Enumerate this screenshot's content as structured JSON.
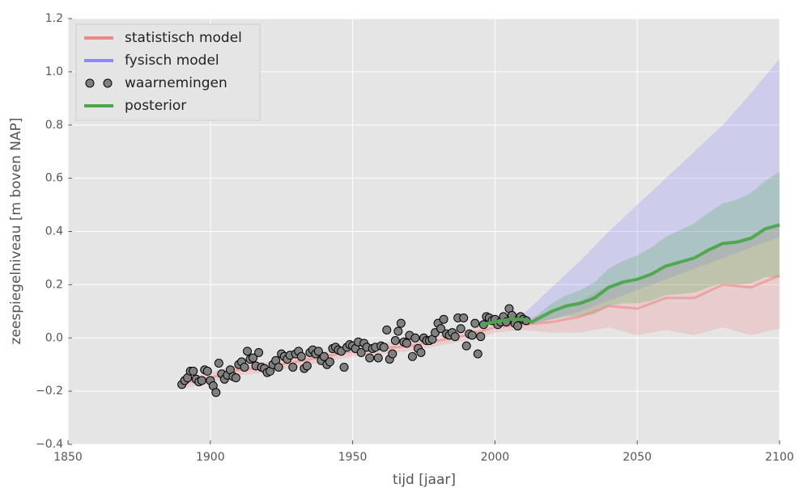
{
  "chart_data": {
    "type": "line",
    "xlabel": "tijd [jaar]",
    "ylabel": "zeespiegelniveau [m boven NAP]",
    "xlim": [
      1850,
      2100
    ],
    "ylim": [
      -0.4,
      1.2
    ],
    "xticks": [
      1850,
      1900,
      1950,
      2000,
      2050,
      2100
    ],
    "yticks": [
      {
        "value": -0.4,
        "label": "−0.4"
      },
      {
        "value": -0.2,
        "label": "−0.2"
      },
      {
        "value": 0,
        "label": "0.0"
      },
      0.2,
      0.4,
      0.6,
      0.8,
      {
        "value": 1,
        "label": "1.0"
      },
      1.2
    ],
    "grid": true,
    "legend": "upper-left",
    "series": [
      {
        "name": "statistisch model",
        "color": "#ee8888",
        "type": "line",
        "x": [
          1890,
          1900,
          1910,
          1920,
          1930,
          1940,
          1950,
          1960,
          1970,
          1980,
          1990,
          2000,
          2010,
          2020,
          2030,
          2040,
          2050,
          2060,
          2070,
          2080,
          2090,
          2100
        ],
        "values": [
          -0.17,
          -0.15,
          -0.12,
          -0.11,
          -0.09,
          -0.07,
          -0.05,
          -0.04,
          -0.03,
          -0.01,
          0.01,
          0.04,
          0.05,
          0.06,
          0.08,
          0.12,
          0.11,
          0.15,
          0.15,
          0.2,
          0.19,
          0.235
        ],
        "lower": [
          -0.19,
          -0.17,
          -0.14,
          -0.13,
          -0.11,
          -0.09,
          -0.07,
          -0.06,
          -0.05,
          -0.03,
          -0.01,
          0.02,
          0.03,
          0.02,
          0.02,
          0.04,
          0.01,
          0.03,
          0.01,
          0.04,
          0.01,
          0.035
        ],
        "upper": [
          -0.15,
          -0.13,
          -0.1,
          -0.09,
          -0.07,
          -0.05,
          -0.03,
          -0.02,
          -0.01,
          0.01,
          0.03,
          0.06,
          0.07,
          0.1,
          0.14,
          0.2,
          0.21,
          0.27,
          0.29,
          0.36,
          0.37,
          0.435
        ]
      },
      {
        "name": "fysisch model",
        "color": "#8888ff",
        "type": "band",
        "x": [
          2010,
          2020,
          2030,
          2040,
          2050,
          2060,
          2070,
          2080,
          2090,
          2100
        ],
        "lower": [
          0.05,
          0.07,
          0.1,
          0.14,
          0.18,
          0.22,
          0.26,
          0.3,
          0.34,
          0.38
        ],
        "upper": [
          0.09,
          0.19,
          0.29,
          0.4,
          0.5,
          0.6,
          0.7,
          0.8,
          0.92,
          1.05
        ]
      },
      {
        "name": "waarnemingen",
        "color": "#808080",
        "type": "scatter",
        "x": [
          1890,
          1891,
          1892,
          1893,
          1894,
          1895,
          1896,
          1897,
          1898,
          1899,
          1900,
          1901,
          1902,
          1903,
          1904,
          1905,
          1906,
          1907,
          1908,
          1909,
          1910,
          1911,
          1912,
          1913,
          1914,
          1915,
          1916,
          1917,
          1918,
          1919,
          1920,
          1921,
          1922,
          1923,
          1924,
          1925,
          1926,
          1927,
          1928,
          1929,
          1930,
          1931,
          1932,
          1933,
          1934,
          1935,
          1936,
          1937,
          1938,
          1939,
          1940,
          1941,
          1942,
          1943,
          1944,
          1945,
          1946,
          1947,
          1948,
          1949,
          1950,
          1951,
          1952,
          1953,
          1954,
          1955,
          1956,
          1957,
          1958,
          1959,
          1960,
          1961,
          1962,
          1963,
          1964,
          1965,
          1966,
          1967,
          1968,
          1969,
          1970,
          1971,
          1972,
          1973,
          1974,
          1975,
          1976,
          1977,
          1978,
          1979,
          1980,
          1981,
          1982,
          1983,
          1984,
          1985,
          1986,
          1987,
          1988,
          1989,
          1990,
          1991,
          1992,
          1993,
          1994,
          1995,
          1996,
          1997,
          1998,
          1999,
          2000,
          2001,
          2002,
          2003,
          2004,
          2005,
          2006,
          2007,
          2008,
          2009,
          2010,
          2011
        ],
        "values": [
          -0.175,
          -0.16,
          -0.15,
          -0.125,
          -0.125,
          -0.155,
          -0.165,
          -0.16,
          -0.12,
          -0.125,
          -0.16,
          -0.18,
          -0.205,
          -0.095,
          -0.135,
          -0.155,
          -0.14,
          -0.12,
          -0.145,
          -0.15,
          -0.1,
          -0.09,
          -0.11,
          -0.05,
          -0.08,
          -0.075,
          -0.105,
          -0.055,
          -0.11,
          -0.115,
          -0.13,
          -0.125,
          -0.1,
          -0.085,
          -0.11,
          -0.06,
          -0.07,
          -0.08,
          -0.065,
          -0.11,
          -0.06,
          -0.05,
          -0.07,
          -0.115,
          -0.105,
          -0.055,
          -0.045,
          -0.06,
          -0.05,
          -0.085,
          -0.07,
          -0.1,
          -0.09,
          -0.04,
          -0.035,
          -0.045,
          -0.05,
          -0.11,
          -0.035,
          -0.025,
          -0.03,
          -0.04,
          -0.015,
          -0.055,
          -0.02,
          -0.035,
          -0.075,
          -0.04,
          -0.035,
          -0.075,
          -0.03,
          -0.035,
          0.03,
          -0.08,
          -0.06,
          -0.01,
          0.025,
          0.055,
          -0.015,
          -0.02,
          0.01,
          -0.07,
          0.0,
          -0.04,
          -0.055,
          0.0,
          -0.01,
          -0.01,
          -0.005,
          0.02,
          0.055,
          0.035,
          0.07,
          0.015,
          0.01,
          0.02,
          0.005,
          0.075,
          0.035,
          0.075,
          -0.03,
          0.015,
          0.01,
          0.055,
          -0.06,
          0.005,
          0.05,
          0.08,
          0.075,
          0.065,
          0.07,
          0.05,
          0.06,
          0.08,
          0.06,
          0.11,
          0.085,
          0.055,
          0.045,
          0.08,
          0.07,
          0.065
        ]
      },
      {
        "name": "posterior",
        "color": "#4ca64c",
        "type": "line",
        "x": [
          1995,
          2000,
          2005,
          2010,
          2013,
          2020,
          2025,
          2030,
          2035,
          2040,
          2045,
          2050,
          2055,
          2060,
          2065,
          2070,
          2075,
          2080,
          2085,
          2090,
          2095,
          2100
        ],
        "values": [
          0.05,
          0.06,
          0.07,
          0.07,
          0.06,
          0.1,
          0.12,
          0.13,
          0.15,
          0.19,
          0.21,
          0.22,
          0.24,
          0.27,
          0.285,
          0.3,
          0.33,
          0.355,
          0.36,
          0.375,
          0.41,
          0.425
        ],
        "lower": [
          0.04,
          0.05,
          0.06,
          0.06,
          0.05,
          0.07,
          0.08,
          0.08,
          0.09,
          0.12,
          0.13,
          0.13,
          0.14,
          0.16,
          0.165,
          0.17,
          0.19,
          0.205,
          0.2,
          0.205,
          0.23,
          0.225
        ],
        "upper": [
          0.06,
          0.07,
          0.08,
          0.08,
          0.07,
          0.13,
          0.16,
          0.18,
          0.21,
          0.26,
          0.29,
          0.31,
          0.34,
          0.38,
          0.405,
          0.43,
          0.47,
          0.505,
          0.52,
          0.545,
          0.59,
          0.625
        ]
      }
    ]
  }
}
